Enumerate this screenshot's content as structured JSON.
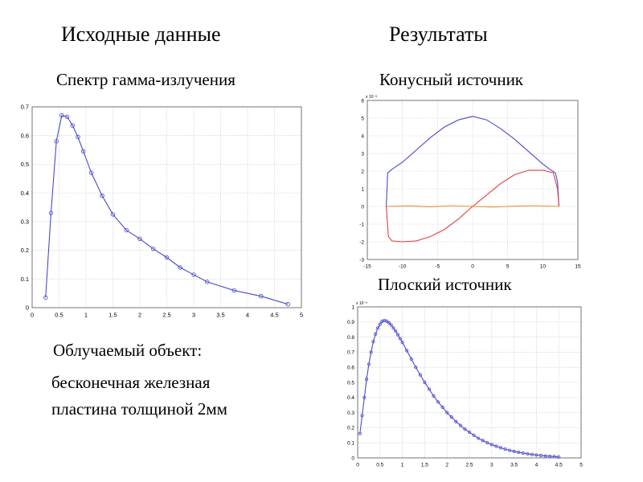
{
  "headings": {
    "left": "Исходные данные",
    "right": "Результаты"
  },
  "subheadings": {
    "spectrum": "Спектр гамма-излучения",
    "cone": "Конусный источник",
    "flat": "Плоский источник"
  },
  "object": {
    "label": "Облучаемый объект:",
    "description_line1": "бесконечная железная",
    "description_line2": "пластина толщиной 2мм"
  },
  "colors": {
    "blue": "#4a4ad0",
    "red": "#e04040",
    "orange": "#f08a30",
    "grid": "#c8c8c8"
  },
  "chart_data": [
    {
      "id": "spectrum",
      "type": "line",
      "title": "",
      "xlabel": "",
      "ylabel": "",
      "xlim": [
        0,
        5
      ],
      "ylim": [
        0,
        0.7
      ],
      "xticks": [
        0,
        0.5,
        1,
        1.5,
        2,
        2.5,
        3,
        3.5,
        4,
        4.5,
        5
      ],
      "yticks": [
        0,
        0.1,
        0.2,
        0.3,
        0.4,
        0.5,
        0.6,
        0.7
      ],
      "grid": true,
      "markers": "circle",
      "series": [
        {
          "color": "#4a4ad0",
          "x": [
            0.25,
            0.35,
            0.45,
            0.55,
            0.65,
            0.75,
            0.85,
            0.95,
            1.1,
            1.3,
            1.5,
            1.75,
            2.0,
            2.25,
            2.5,
            2.75,
            3.0,
            3.25,
            3.75,
            4.25,
            4.75
          ],
          "y": [
            0.035,
            0.33,
            0.58,
            0.67,
            0.665,
            0.635,
            0.595,
            0.545,
            0.47,
            0.39,
            0.325,
            0.27,
            0.24,
            0.205,
            0.175,
            0.14,
            0.115,
            0.09,
            0.06,
            0.04,
            0.012
          ]
        }
      ]
    },
    {
      "id": "cone",
      "type": "line",
      "title": "",
      "xlabel": "",
      "ylabel": "",
      "exponent_label": "x 10⁻³",
      "xlim": [
        -15,
        15
      ],
      "ylim": [
        -3,
        6
      ],
      "xticks": [
        -15,
        -10,
        -5,
        0,
        5,
        10,
        15
      ],
      "yticks": [
        -3,
        -2,
        -1,
        0,
        1,
        2,
        3,
        4,
        5,
        6
      ],
      "grid": true,
      "markers": "none",
      "series": [
        {
          "color": "#4a4ad0",
          "x": [
            -12.3,
            -12.1,
            -11.5,
            -10,
            -8,
            -6,
            -4,
            -2,
            0,
            2,
            4,
            6,
            8,
            10,
            11,
            11.8,
            12.1,
            12.3
          ],
          "y": [
            0,
            1.9,
            2.1,
            2.5,
            3.2,
            3.9,
            4.5,
            4.9,
            5.1,
            4.9,
            4.4,
            3.8,
            3.1,
            2.4,
            2.1,
            1.9,
            1.4,
            0
          ]
        },
        {
          "color": "#e04040",
          "x": [
            -12.3,
            -12.0,
            -11.5,
            -10,
            -8,
            -6,
            -4,
            -2,
            0,
            2,
            4,
            6,
            8,
            10,
            11.5,
            12.1,
            12.3
          ],
          "y": [
            0,
            -1.7,
            -1.95,
            -2.0,
            -1.95,
            -1.7,
            -1.3,
            -0.7,
            0,
            0.65,
            1.3,
            1.8,
            2.05,
            2.05,
            1.9,
            1.0,
            0
          ]
        },
        {
          "color": "#f08a30",
          "x": [
            -12.3,
            -9,
            -6,
            -3,
            0,
            3,
            6,
            9,
            12.3
          ],
          "y": [
            0,
            0.03,
            -0.02,
            0.04,
            0,
            -0.03,
            0.02,
            0.04,
            0
          ]
        }
      ]
    },
    {
      "id": "flat",
      "type": "line",
      "title": "",
      "xlabel": "",
      "ylabel": "",
      "exponent_label": "x 10⁻³",
      "xlim": [
        0,
        5
      ],
      "ylim": [
        0,
        1
      ],
      "xticks": [
        0,
        0.5,
        1,
        1.5,
        2,
        2.5,
        3,
        3.5,
        4,
        4.5,
        5
      ],
      "yticks": [
        0,
        0.1,
        0.2,
        0.3,
        0.4,
        0.5,
        0.6,
        0.7,
        0.8,
        0.9,
        1
      ],
      "grid": true,
      "markers": "circle",
      "series": [
        {
          "color": "#4a4ad0",
          "x": [
            0.05,
            0.1,
            0.15,
            0.2,
            0.25,
            0.3,
            0.35,
            0.4,
            0.45,
            0.5,
            0.55,
            0.6,
            0.65,
            0.7,
            0.75,
            0.8,
            0.85,
            0.9,
            0.95,
            1.0,
            1.1,
            1.2,
            1.3,
            1.4,
            1.5,
            1.6,
            1.7,
            1.8,
            1.9,
            2.0,
            2.1,
            2.2,
            2.3,
            2.4,
            2.5,
            2.6,
            2.7,
            2.8,
            2.9,
            3.0,
            3.1,
            3.2,
            3.3,
            3.4,
            3.5,
            3.6,
            3.7,
            3.8,
            3.9,
            4.0,
            4.1,
            4.2,
            4.3,
            4.4,
            4.5
          ],
          "y": [
            0.16,
            0.28,
            0.4,
            0.52,
            0.62,
            0.7,
            0.77,
            0.82,
            0.86,
            0.885,
            0.905,
            0.91,
            0.905,
            0.895,
            0.88,
            0.86,
            0.84,
            0.815,
            0.79,
            0.765,
            0.71,
            0.655,
            0.6,
            0.55,
            0.5,
            0.455,
            0.41,
            0.37,
            0.335,
            0.3,
            0.27,
            0.24,
            0.215,
            0.19,
            0.17,
            0.15,
            0.13,
            0.115,
            0.1,
            0.088,
            0.077,
            0.067,
            0.058,
            0.05,
            0.043,
            0.037,
            0.032,
            0.027,
            0.023,
            0.019,
            0.016,
            0.013,
            0.011,
            0.009,
            0.006
          ]
        }
      ]
    }
  ]
}
